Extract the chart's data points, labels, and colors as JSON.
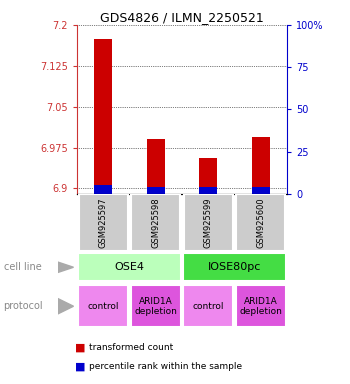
{
  "title": "GDS4826 / ILMN_2250521",
  "samples": [
    "GSM925597",
    "GSM925598",
    "GSM925599",
    "GSM925600"
  ],
  "red_values": [
    7.175,
    6.99,
    6.955,
    6.995
  ],
  "blue_values": [
    6.906,
    6.903,
    6.902,
    6.902
  ],
  "ylim_left": [
    6.89,
    7.2
  ],
  "ylim_right": [
    0,
    100
  ],
  "yticks_left": [
    6.9,
    6.975,
    7.05,
    7.125,
    7.2
  ],
  "yticks_right": [
    0,
    25,
    50,
    75,
    100
  ],
  "ytick_labels_left": [
    "6.9",
    "6.975",
    "7.05",
    "7.125",
    "7.2"
  ],
  "ytick_labels_right": [
    "0",
    "25",
    "50",
    "75",
    "100%"
  ],
  "cell_line_groups": [
    {
      "label": "OSE4",
      "span": [
        0,
        2
      ],
      "color": "#bbffbb"
    },
    {
      "label": "IOSE80pc",
      "span": [
        2,
        4
      ],
      "color": "#44dd44"
    }
  ],
  "protocol_groups": [
    {
      "label": "control",
      "span": [
        0,
        1
      ],
      "color": "#ee88ee"
    },
    {
      "label": "ARID1A\ndepletion",
      "span": [
        1,
        2
      ],
      "color": "#dd55dd"
    },
    {
      "label": "control",
      "span": [
        2,
        3
      ],
      "color": "#ee88ee"
    },
    {
      "label": "ARID1A\ndepletion",
      "span": [
        3,
        4
      ],
      "color": "#dd55dd"
    }
  ],
  "red_color": "#cc0000",
  "blue_color": "#0000cc",
  "bar_width": 0.35,
  "sample_box_color": "#cccccc",
  "legend_red_label": "transformed count",
  "legend_blue_label": "percentile rank within the sample",
  "cell_line_label": "cell line",
  "protocol_label": "protocol",
  "left_axis_color": "#cc3333",
  "right_axis_color": "#0000cc"
}
